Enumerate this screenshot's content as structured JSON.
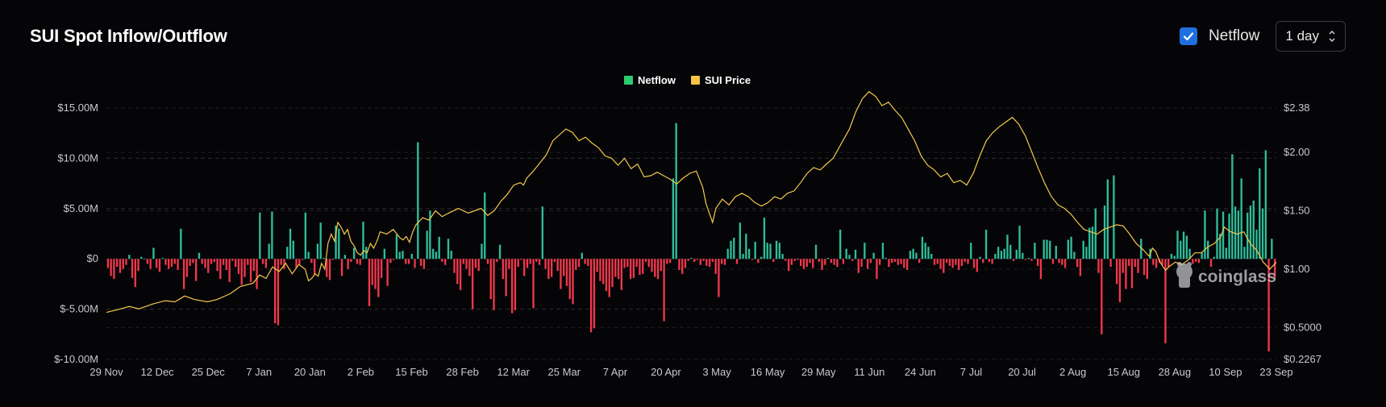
{
  "header": {
    "title": "SUI Spot Inflow/Outflow",
    "checkbox_label": "Netflow",
    "checkbox_checked": true,
    "interval": "1 day"
  },
  "watermark": "coinglass",
  "colors": {
    "inflow": "#2ebd9a",
    "outflow": "#f0384b",
    "price": "#f4c84a",
    "grid": "#2c2c33",
    "legend_netflow": "#2ecc71",
    "legend_price": "#f4c442"
  },
  "chart_data": {
    "type": "bar",
    "legend": [
      {
        "name": "Netflow",
        "type": "bar"
      },
      {
        "name": "SUI Price",
        "type": "line"
      }
    ],
    "x_tick_labels": [
      "29 Nov",
      "12 Dec",
      "25 Dec",
      "7 Jan",
      "20 Jan",
      "2 Feb",
      "15 Feb",
      "28 Feb",
      "12 Mar",
      "25 Mar",
      "7 Apr",
      "20 Apr",
      "3 May",
      "16 May",
      "29 May",
      "11 Jun",
      "24 Jun",
      "7 Jul",
      "20 Jul",
      "2 Aug",
      "15 Aug",
      "28 Aug",
      "10 Sep",
      "23 Sep"
    ],
    "y_left_ticks": [
      "$15.00M",
      "$10.00M",
      "$5.00M",
      "$0",
      "$-5.00M",
      "$-10.00M"
    ],
    "y_left_values": [
      15,
      10,
      5,
      0,
      -5,
      -10
    ],
    "y_right_ticks": [
      "$2.38",
      "$2.00",
      "$1.50",
      "$1.00",
      "$0.5000",
      "$0.2267"
    ],
    "y_right_values": [
      2.38,
      2.0,
      1.5,
      1.0,
      0.5,
      0.2267
    ],
    "y_left_range": [
      -10,
      15
    ],
    "y_right_range": [
      0.2267,
      2.38
    ],
    "grid": true,
    "legend_position": "top-center",
    "netflow_unit": "$M",
    "start_date": "29 Nov",
    "netflow": [
      -0.9,
      -1.7,
      -2.0,
      -0.8,
      -1.4,
      -1.0,
      -0.6,
      0.4,
      -1.9,
      -2.8,
      -1.2,
      0.2,
      0.0,
      -0.5,
      -1.0,
      1.1,
      -0.9,
      -1.3,
      0.1,
      -0.6,
      -1.0,
      -0.8,
      -0.5,
      -1.1,
      3.0,
      -3.0,
      -1.8,
      -0.7,
      -0.4,
      -2.2,
      0.6,
      -0.5,
      -0.9,
      -1.4,
      -0.5,
      -0.3,
      -1.2,
      -2.0,
      -0.6,
      -1.1,
      -2.3,
      -0.2,
      -0.8,
      -1.5,
      -2.6,
      -1.8,
      -0.6,
      -2.3,
      -1.2,
      -3.0,
      4.6,
      -0.5,
      -0.9,
      1.5,
      4.7,
      -6.4,
      -6.6,
      -0.6,
      -1.0,
      1.2,
      3.0,
      1.8,
      -0.9,
      -0.6,
      -0.1,
      4.6,
      0.7,
      -0.4,
      -1.6,
      1.5,
      3.6,
      0.1,
      -1.8,
      -2.1,
      -0.1,
      3.3,
      3.0,
      -1.7,
      0.4,
      -1.0,
      -0.3,
      1.1,
      -0.5,
      -0.6,
      3.7,
      1.2,
      -4.7,
      -2.6,
      -3.0,
      -3.8,
      -1.9,
      1.0,
      -2.7,
      -0.4,
      -0.1,
      2.4,
      0.7,
      0.8,
      -0.5,
      -0.5,
      0.5,
      -0.9,
      11.6,
      -0.7,
      -1.0,
      2.8,
      4.8,
      1.0,
      0.7,
      2.2,
      -0.3,
      -0.6,
      2.0,
      0.8,
      -1.4,
      -2.5,
      -3.1,
      -0.5,
      -1.0,
      -1.7,
      -5.0,
      -0.9,
      -1.2,
      1.5,
      6.6,
      -0.5,
      -4.0,
      -5.1,
      -0.3,
      1.4,
      -2.0,
      -3.7,
      -1.0,
      -5.4,
      -5.1,
      -0.8,
      -0.1,
      -1.7,
      -0.9,
      -0.5,
      -4.9,
      -0.3,
      -0.6,
      5.2,
      -1.0,
      -2.0,
      -1.8,
      -0.3,
      -1.2,
      -3.0,
      -1.7,
      -2.7,
      -4.0,
      -4.5,
      -1.1,
      -0.8,
      0.6,
      -0.5,
      -0.7,
      -7.3,
      -6.9,
      -1.3,
      -2.2,
      -2.5,
      -3.2,
      -3.8,
      -2.8,
      -1.8,
      -2.0,
      -3.1,
      -0.9,
      -0.8,
      -2.0,
      -1.9,
      -0.8,
      -1.6,
      -1.5,
      -0.3,
      -0.8,
      -1.3,
      -1.8,
      -2.0,
      -1.2,
      -6.2,
      -0.5,
      -0.4,
      8.0,
      13.5,
      -1.1,
      -1.5,
      -0.9,
      -0.2,
      0.1,
      -0.3,
      -0.1,
      -0.6,
      -0.2,
      -0.7,
      -0.8,
      -0.3,
      -1.5,
      -3.8,
      -0.5,
      -0.6,
      1.0,
      1.8,
      2.1,
      -0.5,
      3.6,
      0.5,
      2.5,
      1.0,
      -0.1,
      1.7,
      -0.4,
      0.2,
      4.1,
      1.6,
      1.5,
      -0.3,
      1.8,
      1.6,
      0.5,
      -0.2,
      -1.2,
      -0.6,
      -0.2,
      -0.1,
      -0.7,
      -1.0,
      -0.8,
      -0.4,
      -0.9,
      1.4,
      -0.3,
      -1.1,
      -0.6,
      0.1,
      -0.4,
      -0.6,
      -0.8,
      2.9,
      -0.5,
      1.0,
      0.4,
      -0.2,
      0.9,
      -1.4,
      -0.8,
      1.6,
      -1.0,
      -0.4,
      0.6,
      -2.0,
      -0.6,
      1.6,
      0.1,
      -0.8,
      -0.4,
      -0.3,
      -0.6,
      -0.5,
      -0.9,
      -1.1,
      0.8,
      1.0,
      0.6,
      -0.4,
      2.2,
      1.6,
      1.2,
      0.5,
      -0.6,
      -0.5,
      -1.0,
      -1.4,
      -0.4,
      -0.7,
      -0.9,
      -0.6,
      -1.1,
      -0.7,
      -0.3,
      -0.5,
      1.6,
      -0.9,
      -1.3,
      0.2,
      -0.4,
      2.9,
      -0.3,
      -0.5,
      0.5,
      1.2,
      0.8,
      1.0,
      2.4,
      1.4,
      -0.2,
      0.9,
      3.3,
      0.6,
      -0.1,
      0.1,
      -0.2,
      1.6,
      -0.7,
      -2.0,
      1.9,
      1.9,
      1.8,
      -0.5,
      1.3,
      -0.4,
      -0.6,
      -0.9,
      1.9,
      2.2,
      0.7,
      -0.8,
      -1.7,
      1.8,
      1.2,
      3.1,
      3.2,
      5.0,
      -1.4,
      -7.5,
      5.3,
      7.9,
      -0.8,
      8.3,
      -2.5,
      -4.3,
      -1.4,
      -3.0,
      -0.7,
      -2.9,
      -0.8,
      -1.4,
      2.0,
      -1.6,
      -2.0,
      1.0,
      -0.6,
      -0.9,
      -0.4,
      -0.6,
      -8.4,
      -0.8,
      0.5,
      0.3,
      2.8,
      1.8,
      2.7,
      2.3,
      1.0,
      -0.5,
      -0.3,
      -0.4,
      0.6,
      4.8,
      1.8,
      -0.8,
      0.2,
      5.0,
      2.5,
      4.7,
      1.1,
      4.5,
      10.4,
      5.2,
      4.8,
      8.0,
      1.2,
      4.6,
      5.3,
      5.8,
      2.9,
      9.0,
      5.0,
      10.8,
      -9.2,
      2.0,
      -1.9
    ],
    "price_points": [
      [
        0,
        0.63
      ],
      [
        3,
        0.65
      ],
      [
        7,
        0.68
      ],
      [
        10,
        0.66
      ],
      [
        14,
        0.7
      ],
      [
        18,
        0.73
      ],
      [
        21,
        0.72
      ],
      [
        24,
        0.77
      ],
      [
        27,
        0.74
      ],
      [
        31,
        0.72
      ],
      [
        34,
        0.74
      ],
      [
        38,
        0.79
      ],
      [
        41,
        0.85
      ],
      [
        45,
        0.88
      ],
      [
        47,
        0.95
      ],
      [
        49,
        0.92
      ],
      [
        51,
        1.02
      ],
      [
        53,
        0.98
      ],
      [
        55,
        1.05
      ],
      [
        57,
        0.96
      ],
      [
        59,
        1.04
      ],
      [
        61,
        1.0
      ],
      [
        62,
        0.9
      ],
      [
        63,
        0.92
      ],
      [
        64,
        0.96
      ],
      [
        65,
        0.94
      ],
      [
        66,
        1.05
      ],
      [
        67,
        1.0
      ],
      [
        68,
        1.22
      ],
      [
        69,
        1.3
      ],
      [
        70,
        1.24
      ],
      [
        71,
        1.4
      ],
      [
        72,
        1.36
      ],
      [
        73,
        1.3
      ],
      [
        74,
        1.34
      ],
      [
        75,
        1.24
      ],
      [
        76,
        1.2
      ],
      [
        77,
        1.14
      ],
      [
        78,
        1.12
      ],
      [
        79,
        1.16
      ],
      [
        80,
        1.14
      ],
      [
        81,
        1.22
      ],
      [
        82,
        1.18
      ],
      [
        83,
        1.24
      ],
      [
        84,
        1.32
      ],
      [
        86,
        1.3
      ],
      [
        88,
        1.34
      ],
      [
        90,
        1.27
      ],
      [
        91,
        1.25
      ],
      [
        92,
        1.28
      ],
      [
        93,
        1.23
      ],
      [
        94,
        1.32
      ],
      [
        95,
        1.38
      ],
      [
        97,
        1.44
      ],
      [
        99,
        1.42
      ],
      [
        101,
        1.5
      ],
      [
        103,
        1.45
      ],
      [
        105,
        1.48
      ],
      [
        108,
        1.52
      ],
      [
        111,
        1.48
      ],
      [
        113,
        1.5
      ],
      [
        115,
        1.52
      ],
      [
        117,
        1.46
      ],
      [
        119,
        1.5
      ],
      [
        121,
        1.58
      ],
      [
        123,
        1.64
      ],
      [
        125,
        1.72
      ],
      [
        127,
        1.74
      ],
      [
        128,
        1.72
      ],
      [
        129,
        1.78
      ],
      [
        131,
        1.84
      ],
      [
        133,
        1.91
      ],
      [
        135,
        1.98
      ],
      [
        137,
        2.1
      ],
      [
        139,
        2.15
      ],
      [
        141,
        2.2
      ],
      [
        143,
        2.17
      ],
      [
        145,
        2.1
      ],
      [
        147,
        2.13
      ],
      [
        149,
        2.08
      ],
      [
        151,
        2.04
      ],
      [
        153,
        1.97
      ],
      [
        155,
        1.95
      ],
      [
        157,
        1.89
      ],
      [
        159,
        1.95
      ],
      [
        161,
        1.86
      ],
      [
        163,
        1.9
      ],
      [
        165,
        1.79
      ],
      [
        167,
        1.8
      ],
      [
        169,
        1.83
      ],
      [
        171,
        1.8
      ],
      [
        173,
        1.77
      ],
      [
        175,
        1.73
      ],
      [
        177,
        1.78
      ],
      [
        179,
        1.82
      ],
      [
        181,
        1.84
      ],
      [
        183,
        1.7
      ],
      [
        184,
        1.56
      ],
      [
        185,
        1.48
      ],
      [
        186,
        1.4
      ],
      [
        187,
        1.52
      ],
      [
        189,
        1.6
      ],
      [
        191,
        1.55
      ],
      [
        193,
        1.62
      ],
      [
        195,
        1.65
      ],
      [
        197,
        1.62
      ],
      [
        199,
        1.57
      ],
      [
        201,
        1.54
      ],
      [
        203,
        1.57
      ],
      [
        205,
        1.62
      ],
      [
        207,
        1.6
      ],
      [
        209,
        1.65
      ],
      [
        211,
        1.67
      ],
      [
        213,
        1.74
      ],
      [
        215,
        1.82
      ],
      [
        217,
        1.87
      ],
      [
        219,
        1.85
      ],
      [
        221,
        1.9
      ],
      [
        223,
        1.95
      ],
      [
        224,
        2.0
      ],
      [
        226,
        2.1
      ],
      [
        228,
        2.2
      ],
      [
        230,
        2.35
      ],
      [
        232,
        2.46
      ],
      [
        234,
        2.52
      ],
      [
        236,
        2.48
      ],
      [
        238,
        2.4
      ],
      [
        240,
        2.43
      ],
      [
        242,
        2.36
      ],
      [
        244,
        2.3
      ],
      [
        246,
        2.2
      ],
      [
        248,
        2.1
      ],
      [
        250,
        1.97
      ],
      [
        252,
        1.89
      ],
      [
        254,
        1.85
      ],
      [
        256,
        1.79
      ],
      [
        258,
        1.82
      ],
      [
        260,
        1.74
      ],
      [
        262,
        1.76
      ],
      [
        264,
        1.72
      ],
      [
        266,
        1.82
      ],
      [
        268,
        1.97
      ],
      [
        270,
        2.1
      ],
      [
        272,
        2.17
      ],
      [
        274,
        2.22
      ],
      [
        276,
        2.26
      ],
      [
        278,
        2.3
      ],
      [
        280,
        2.24
      ],
      [
        282,
        2.14
      ],
      [
        284,
        2.0
      ],
      [
        286,
        1.86
      ],
      [
        288,
        1.73
      ],
      [
        290,
        1.62
      ],
      [
        292,
        1.55
      ],
      [
        294,
        1.52
      ],
      [
        296,
        1.47
      ],
      [
        298,
        1.4
      ],
      [
        300,
        1.34
      ],
      [
        302,
        1.32
      ],
      [
        304,
        1.3
      ],
      [
        306,
        1.34
      ],
      [
        308,
        1.36
      ],
      [
        310,
        1.38
      ],
      [
        312,
        1.37
      ],
      [
        314,
        1.3
      ],
      [
        316,
        1.22
      ],
      [
        318,
        1.17
      ],
      [
        320,
        1.11
      ],
      [
        321,
        1.18
      ],
      [
        322,
        1.15
      ],
      [
        323,
        1.08
      ],
      [
        324,
        1.03
      ],
      [
        325,
        0.99
      ],
      [
        326,
        1.02
      ],
      [
        328,
        1.06
      ],
      [
        330,
        1.04
      ],
      [
        332,
        1.08
      ],
      [
        334,
        1.14
      ],
      [
        336,
        1.14
      ],
      [
        338,
        1.19
      ],
      [
        340,
        1.22
      ],
      [
        342,
        1.28
      ],
      [
        343,
        1.36
      ],
      [
        345,
        1.32
      ],
      [
        347,
        1.3
      ],
      [
        349,
        1.32
      ],
      [
        351,
        1.22
      ],
      [
        353,
        1.16
      ],
      [
        355,
        1.06
      ],
      [
        357,
        1.0
      ],
      [
        359,
        1.06
      ]
    ],
    "price_series_note": "x index scaled to 360 slots over the period"
  }
}
